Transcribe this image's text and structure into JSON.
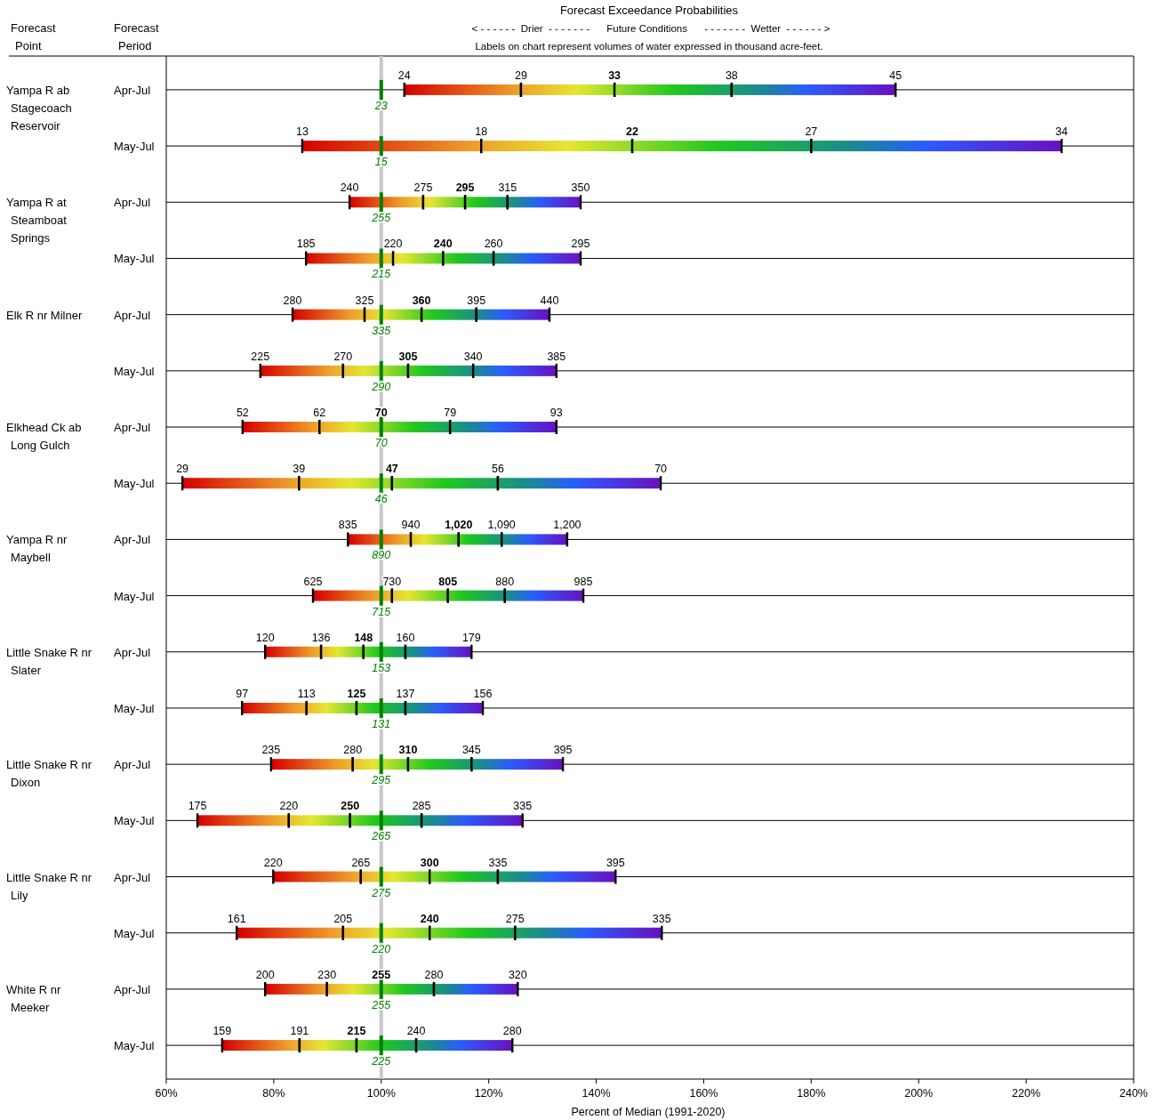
{
  "chart_data": {
    "type": "bar",
    "orientation": "horizontal",
    "title": "Forecast Exceedance Probabilities",
    "subtitle": "< - - - - - -  Drier  - - - - - - -      Future Conditions      - - - - - - -  Wetter  - - - - - - >",
    "xlabel": "Percent of Median (1991-2020)",
    "annotations": [
      "Labels on chart represent volumes of water expressed in thousand acre-feet.",
      "Forecast\nPoint",
      "Forecast\nPeriod",
      "Yampa R ab\nStagecoach\nReservoir",
      "Yampa R at\nSteamboat\nSprings",
      "Elk R nr Milner",
      "Elkhead Ck ab\nLong Gulch",
      "Yampa R nr\nMaybell",
      "Little Snake R nr\nSlater",
      "Little Snake R nr\nDixon",
      "Little Snake R nr\nLily",
      "White R nr\nMeeker",
      "24",
      "29",
      "33",
      "38",
      "45",
      "23",
      "13",
      "18",
      "22",
      "27",
      "34",
      "15",
      "240",
      "275",
      "295",
      "315",
      "350",
      "255",
      "185",
      "220",
      "240",
      "260",
      "295",
      "215",
      "280",
      "325",
      "360",
      "395",
      "440",
      "335",
      "225",
      "270",
      "305",
      "340",
      "385",
      "290",
      "52",
      "62",
      "70",
      "79",
      "93",
      "70",
      "29",
      "39",
      "47",
      "56",
      "70",
      "46",
      "835",
      "940",
      "1,020",
      "1,090",
      "1,200",
      "890",
      "625",
      "730",
      "805",
      "880",
      "985",
      "715",
      "120",
      "136",
      "148",
      "160",
      "179",
      "153",
      "97",
      "113",
      "125",
      "137",
      "156",
      "131",
      "235",
      "280",
      "310",
      "345",
      "395",
      "295",
      "175",
      "220",
      "250",
      "285",
      "335",
      "265",
      "220",
      "265",
      "300",
      "335",
      "395",
      "275",
      "161",
      "205",
      "240",
      "275",
      "335",
      "220",
      "200",
      "230",
      "255",
      "280",
      "320",
      "255",
      "159",
      "191",
      "215",
      "240",
      "280",
      "225"
    ],
    "categories": [
      "Apr-Jul",
      "May-Jul",
      "Apr-Jul",
      "May-Jul",
      "Apr-Jul",
      "May-Jul",
      "Apr-Jul",
      "May-Jul",
      "Apr-Jul",
      "May-Jul",
      "Apr-Jul",
      "May-Jul",
      "Apr-Jul",
      "May-Jul",
      "Apr-Jul",
      "May-Jul",
      "Apr-Jul",
      "May-Jul"
    ],
    "xlim": [
      60,
      240
    ],
    "xticks": [
      {
        "value": 60,
        "label": "60%"
      },
      {
        "value": 80,
        "label": "80%"
      },
      {
        "value": 100,
        "label": "100%"
      },
      {
        "value": 120,
        "label": "120%"
      },
      {
        "value": 140,
        "label": "140%"
      },
      {
        "value": 160,
        "label": "160%"
      },
      {
        "value": 180,
        "label": "180%"
      },
      {
        "value": 200,
        "label": "200%"
      },
      {
        "value": 220,
        "label": "220%"
      },
      {
        "value": 240,
        "label": "240%"
      }
    ],
    "grid": "y",
    "ref_lines": [
      {
        "axis": "x",
        "value": 100,
        "color": "#c8c8c8"
      }
    ],
    "series": [
      {
        "type": "bar",
        "base": [
          104.3,
          85.3,
          94.1,
          86.0,
          83.5,
          77.5,
          74.2,
          63.0,
          93.8,
          87.3,
          78.4,
          74.1,
          79.5,
          65.8,
          79.9,
          73.1,
          78.4,
          70.4
        ],
        "values": [
          21.7,
          33.3,
          13.7,
          16.2,
          13.4,
          15.4,
          14.3,
          21.7,
          11.7,
          14.7,
          10.4,
          12.0,
          15.2,
          17.0,
          16.3,
          19.8,
          11.5,
          14.4
        ]
      },
      {
        "type": "bar",
        "base": [
          126.0,
          118.6,
          107.8,
          102.2,
          96.9,
          92.9,
          88.5,
          84.7,
          105.5,
          102.0,
          88.8,
          86.1,
          94.7,
          82.8,
          96.2,
          92.9,
          89.9,
          84.8
        ],
        "values": [
          17.4,
          28.1,
          7.8,
          9.3,
          10.6,
          12.1,
          11.5,
          17.3,
          8.9,
          10.4,
          7.9,
          9.3,
          10.3,
          11.4,
          12.8,
          16.1,
          10.1,
          10.6
        ]
      },
      {
        "type": "bar",
        "base": [
          143.4,
          146.7,
          115.6,
          111.5,
          107.5,
          105.0,
          100.0,
          102.0,
          114.4,
          112.4,
          96.7,
          95.4,
          105.0,
          94.2,
          109.0,
          109.0,
          100.0,
          95.4
        ],
        "values": [
          21.8,
          33.3,
          7.9,
          9.4,
          10.2,
          12.1,
          12.8,
          19.7,
          8.0,
          10.6,
          7.8,
          9.1,
          11.8,
          13.3,
          12.7,
          15.9,
          9.8,
          11.1
        ]
      },
      {
        "base": [
          165.2,
          180.0,
          123.5,
          120.9,
          117.7,
          117.1,
          112.8,
          121.7,
          122.4,
          123.0,
          104.5,
          104.5,
          116.8,
          107.5,
          121.7,
          124.9,
          109.8,
          106.5
        ],
        "values": [
          30.5,
          46.6,
          13.6,
          16.2,
          13.6,
          15.5,
          19.8,
          30.3,
          12.2,
          14.6,
          12.3,
          14.4,
          17.0,
          18.8,
          21.9,
          27.3,
          15.6,
          17.9
        ]
      }
    ]
  }
}
